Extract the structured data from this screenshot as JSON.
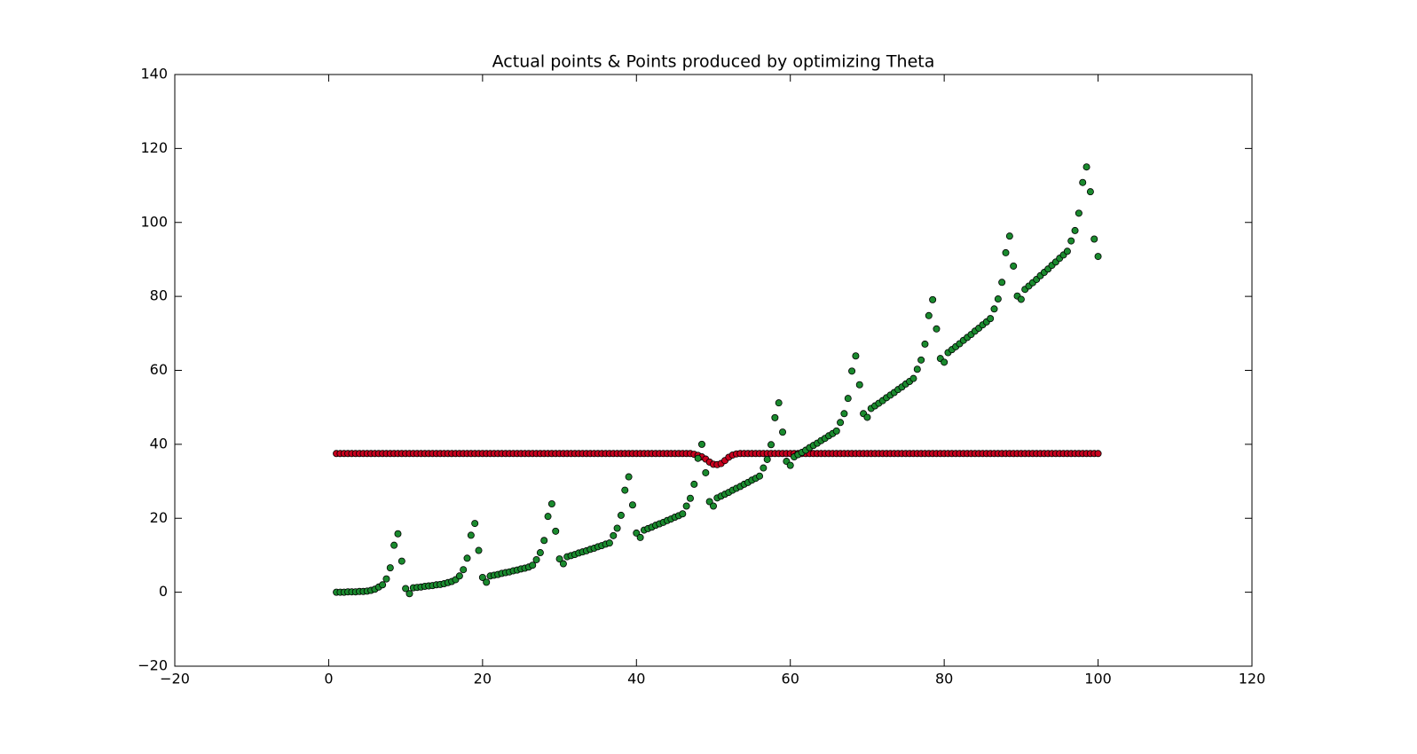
{
  "chart_data": {
    "type": "scatter",
    "title": "Actual points & Points produced by optimizing Theta",
    "x": [
      1,
      1.5,
      2,
      2.5,
      3,
      3.5,
      4,
      4.5,
      5,
      5.5,
      6,
      6.5,
      7,
      7.5,
      8,
      8.5,
      9,
      9.5,
      10,
      10.5,
      11,
      11.5,
      12,
      12.5,
      13,
      13.5,
      14,
      14.5,
      15,
      15.5,
      16,
      16.5,
      17,
      17.5,
      18,
      18.5,
      19,
      19.5,
      20,
      20.5,
      21,
      21.5,
      22,
      22.5,
      23,
      23.5,
      24,
      24.5,
      25,
      25.5,
      26,
      26.5,
      27,
      27.5,
      28,
      28.5,
      29,
      29.5,
      30,
      30.5,
      31,
      31.5,
      32,
      32.5,
      33,
      33.5,
      34,
      34.5,
      35,
      35.5,
      36,
      36.5,
      37,
      37.5,
      38,
      38.5,
      39,
      39.5,
      40,
      40.5,
      41,
      41.5,
      42,
      42.5,
      43,
      43.5,
      44,
      44.5,
      45,
      45.5,
      46,
      46.5,
      47,
      47.5,
      48,
      48.5,
      49,
      49.5,
      50,
      50.5,
      51,
      51.5,
      52,
      52.5,
      53,
      53.5,
      54,
      54.5,
      55,
      55.5,
      56,
      56.5,
      57,
      57.5,
      58,
      58.5,
      59,
      59.5,
      60,
      60.5,
      61,
      61.5,
      62,
      62.5,
      63,
      63.5,
      64,
      64.5,
      65,
      65.5,
      66,
      66.5,
      67,
      67.5,
      68,
      68.5,
      69,
      69.5,
      70,
      70.5,
      71,
      71.5,
      72,
      72.5,
      73,
      73.5,
      74,
      74.5,
      75,
      75.5,
      76,
      76.5,
      77,
      77.5,
      78,
      78.5,
      79,
      79.5,
      80,
      80.5,
      81,
      81.5,
      82,
      82.5,
      83,
      83.5,
      84,
      84.5,
      85,
      85.5,
      86,
      86.5,
      87,
      87.5,
      88,
      88.5,
      89,
      89.5,
      90,
      90.5,
      91,
      91.5,
      92,
      92.5,
      93,
      93.5,
      94,
      94.5,
      95,
      95.5,
      96,
      96.5,
      97,
      97.5,
      98,
      98.5,
      99,
      99.5,
      100
    ],
    "series": [
      {
        "color": "#c8001e",
        "values": [
          37.5,
          37.5,
          37.5,
          37.5,
          37.5,
          37.5,
          37.5,
          37.5,
          37.5,
          37.5,
          37.5,
          37.5,
          37.5,
          37.5,
          37.5,
          37.5,
          37.5,
          37.5,
          37.5,
          37.5,
          37.5,
          37.5,
          37.5,
          37.5,
          37.5,
          37.5,
          37.5,
          37.5,
          37.5,
          37.5,
          37.5,
          37.5,
          37.5,
          37.5,
          37.5,
          37.5,
          37.5,
          37.5,
          37.5,
          37.5,
          37.5,
          37.5,
          37.5,
          37.5,
          37.5,
          37.5,
          37.5,
          37.5,
          37.5,
          37.5,
          37.5,
          37.5,
          37.5,
          37.5,
          37.5,
          37.5,
          37.5,
          37.5,
          37.5,
          37.5,
          37.5,
          37.5,
          37.5,
          37.5,
          37.5,
          37.5,
          37.5,
          37.5,
          37.5,
          37.5,
          37.5,
          37.5,
          37.5,
          37.5,
          37.5,
          37.5,
          37.5,
          37.5,
          37.5,
          37.5,
          37.5,
          37.5,
          37.5,
          37.5,
          37.5,
          37.5,
          37.5,
          37.5,
          37.5,
          37.5,
          37.5,
          37.5,
          37.5,
          37.3,
          37,
          36.6,
          36,
          35.2,
          34.6,
          34.5,
          34.8,
          35.6,
          36.5,
          37.1,
          37.4,
          37.5,
          37.5,
          37.5,
          37.5,
          37.5,
          37.5,
          37.5,
          37.5,
          37.5,
          37.5,
          37.5,
          37.5,
          37.5,
          37.5,
          37.5,
          37.5,
          37.5,
          37.5,
          37.5,
          37.5,
          37.5,
          37.5,
          37.5,
          37.5,
          37.5,
          37.5,
          37.5,
          37.5,
          37.5,
          37.5,
          37.5,
          37.5,
          37.5,
          37.5,
          37.5,
          37.5,
          37.5,
          37.5,
          37.5,
          37.5,
          37.5,
          37.5,
          37.5,
          37.5,
          37.5,
          37.5,
          37.5,
          37.5,
          37.5,
          37.5,
          37.5,
          37.5,
          37.5,
          37.5,
          37.5,
          37.5,
          37.5,
          37.5,
          37.5,
          37.5,
          37.5,
          37.5,
          37.5,
          37.5,
          37.5,
          37.5,
          37.5,
          37.5,
          37.5,
          37.5,
          37.5,
          37.5,
          37.5,
          37.5,
          37.5,
          37.5,
          37.5,
          37.5,
          37.5,
          37.5,
          37.5,
          37.5,
          37.5,
          37.5,
          37.5,
          37.5,
          37.5,
          37.5,
          37.5,
          37.5,
          37.5,
          37.5,
          37.5,
          37.5
        ]
      },
      {
        "color": "#1a8a2e",
        "values": [
          0,
          0,
          0,
          0.1,
          0.1,
          0.1,
          0.2,
          0.2,
          0.3,
          0.5,
          0.8,
          1.4,
          2.0,
          3.6,
          6.6,
          12.7,
          15.8,
          8.4,
          1.0,
          -0.4,
          1.2,
          1.3,
          1.4,
          1.6,
          1.7,
          1.8,
          2.0,
          2.1,
          2.3,
          2.6,
          2.9,
          3.4,
          4.4,
          6.1,
          9.2,
          15.4,
          18.6,
          11.3,
          4.0,
          2.7,
          4.4,
          4.6,
          4.8,
          5.1,
          5.3,
          5.5,
          5.8,
          6.0,
          6.3,
          6.5,
          6.8,
          7.3,
          8.8,
          10.7,
          14.0,
          20.5,
          23.9,
          16.5,
          9.0,
          7.7,
          9.6,
          9.9,
          10.2,
          10.6,
          10.9,
          11.2,
          11.6,
          11.9,
          12.3,
          12.6,
          13.0,
          13.3,
          15.3,
          17.3,
          20.8,
          27.6,
          31.2,
          23.6,
          16.0,
          14.8,
          16.8,
          17.2,
          17.6,
          18.1,
          18.5,
          18.9,
          19.4,
          19.8,
          20.3,
          20.7,
          21.2,
          23.3,
          25.4,
          29.2,
          36.2,
          40.0,
          32.3,
          24.5,
          23.3,
          25.5,
          26.0,
          26.5,
          27.0,
          27.6,
          28.1,
          28.6,
          29.2,
          29.7,
          30.3,
          30.8,
          31.4,
          33.6,
          35.9,
          39.9,
          47.2,
          51.2,
          43.3,
          35.4,
          34.3,
          36.6,
          37.2,
          37.8,
          38.4,
          39.1,
          39.7,
          40.3,
          41.0,
          41.6,
          42.3,
          42.9,
          43.6,
          45.9,
          48.3,
          52.4,
          59.8,
          63.9,
          56.1,
          48.3,
          47.3,
          49.7,
          50.4,
          51.1,
          51.8,
          52.6,
          53.3,
          54.0,
          54.8,
          55.5,
          56.3,
          57.0,
          57.8,
          60.3,
          62.8,
          67.1,
          74.8,
          79.1,
          71.2,
          63.2,
          62.2,
          64.8,
          65.6,
          66.4,
          67.2,
          68.1,
          68.9,
          69.7,
          70.6,
          71.4,
          72.3,
          73.1,
          74.0,
          76.6,
          79.3,
          83.8,
          91.8,
          96.3,
          88.2,
          80.1,
          79.2,
          81.9,
          82.8,
          83.7,
          84.6,
          85.6,
          86.5,
          87.4,
          88.4,
          89.3,
          90.3,
          91.2,
          92.2,
          95.0,
          97.8,
          102.5,
          110.8,
          115.0,
          108.3,
          95.5,
          90.8
        ]
      }
    ],
    "xlim": [
      -20,
      120
    ],
    "xticks": [
      {
        "value": -20,
        "label": "−20"
      },
      0,
      20,
      40,
      60,
      80,
      100,
      120
    ],
    "ylim": [
      -20,
      140
    ],
    "yticks": [
      {
        "value": -20,
        "label": "−20"
      },
      0,
      20,
      40,
      60,
      80,
      100,
      120,
      140
    ],
    "grid": false
  }
}
